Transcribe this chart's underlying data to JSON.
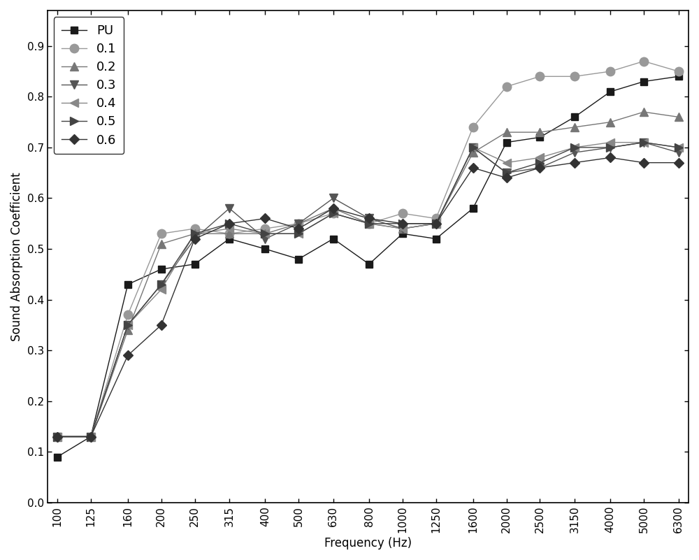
{
  "frequencies": [
    100,
    125,
    160,
    200,
    250,
    315,
    400,
    500,
    630,
    800,
    1000,
    1250,
    1600,
    2000,
    2500,
    3150,
    4000,
    5000,
    6300
  ],
  "series": {
    "PU": {
      "label": "PU",
      "color": "#1a1a1a",
      "marker": "s",
      "markersize": 7,
      "values": [
        0.09,
        0.13,
        0.43,
        0.46,
        0.47,
        0.52,
        0.5,
        0.48,
        0.52,
        0.47,
        0.53,
        0.52,
        0.58,
        0.71,
        0.72,
        0.76,
        0.81,
        0.83,
        0.84
      ]
    },
    "0.1": {
      "label": "0.1",
      "color": "#999999",
      "marker": "o",
      "markersize": 9,
      "values": [
        0.13,
        0.13,
        0.37,
        0.53,
        0.54,
        0.53,
        0.54,
        0.55,
        0.57,
        0.55,
        0.57,
        0.56,
        0.74,
        0.82,
        0.84,
        0.84,
        0.85,
        0.87,
        0.85
      ]
    },
    "0.2": {
      "label": "0.2",
      "color": "#777777",
      "marker": "^",
      "markersize": 8,
      "values": [
        0.13,
        0.13,
        0.34,
        0.51,
        0.53,
        0.53,
        0.53,
        0.55,
        0.58,
        0.55,
        0.54,
        0.55,
        0.69,
        0.73,
        0.73,
        0.74,
        0.75,
        0.77,
        0.76
      ]
    },
    "0.3": {
      "label": "0.3",
      "color": "#555555",
      "marker": "v",
      "markersize": 8,
      "values": [
        0.13,
        0.13,
        0.35,
        0.43,
        0.52,
        0.58,
        0.52,
        0.55,
        0.6,
        0.56,
        0.54,
        0.55,
        0.7,
        0.65,
        0.66,
        0.69,
        0.7,
        0.71,
        0.69
      ]
    },
    "0.4": {
      "label": "0.4",
      "color": "#888888",
      "marker": "<",
      "markersize": 8,
      "values": [
        0.13,
        0.13,
        0.35,
        0.42,
        0.53,
        0.54,
        0.53,
        0.53,
        0.57,
        0.55,
        0.54,
        0.55,
        0.7,
        0.67,
        0.68,
        0.7,
        0.71,
        0.71,
        0.7
      ]
    },
    "0.5": {
      "label": "0.5",
      "color": "#444444",
      "marker": ">",
      "markersize": 8,
      "values": [
        0.13,
        0.13,
        0.35,
        0.43,
        0.53,
        0.55,
        0.53,
        0.53,
        0.57,
        0.55,
        0.55,
        0.55,
        0.7,
        0.65,
        0.67,
        0.7,
        0.7,
        0.71,
        0.7
      ]
    },
    "0.6": {
      "label": "0.6",
      "color": "#333333",
      "marker": "D",
      "markersize": 7,
      "values": [
        0.13,
        0.13,
        0.29,
        0.35,
        0.52,
        0.55,
        0.56,
        0.54,
        0.58,
        0.56,
        0.55,
        0.55,
        0.66,
        0.64,
        0.66,
        0.67,
        0.68,
        0.67,
        0.67
      ]
    }
  },
  "xtick_labels": [
    "100",
    "125",
    "160",
    "200",
    "250",
    "315",
    "400",
    "500",
    "630",
    "800",
    "1000",
    "1250",
    "1600",
    "2000",
    "2500",
    "3150",
    "4000",
    "5000",
    "6300"
  ],
  "ylabel": "Sound Absorption Coefficient",
  "xlabel": "Frequency (Hz)",
  "ylim": [
    0.0,
    0.97
  ],
  "yticks": [
    0.0,
    0.1,
    0.2,
    0.3,
    0.4,
    0.5,
    0.6,
    0.7,
    0.8,
    0.9
  ],
  "line_width": 1.0,
  "background_color": "#ffffff"
}
